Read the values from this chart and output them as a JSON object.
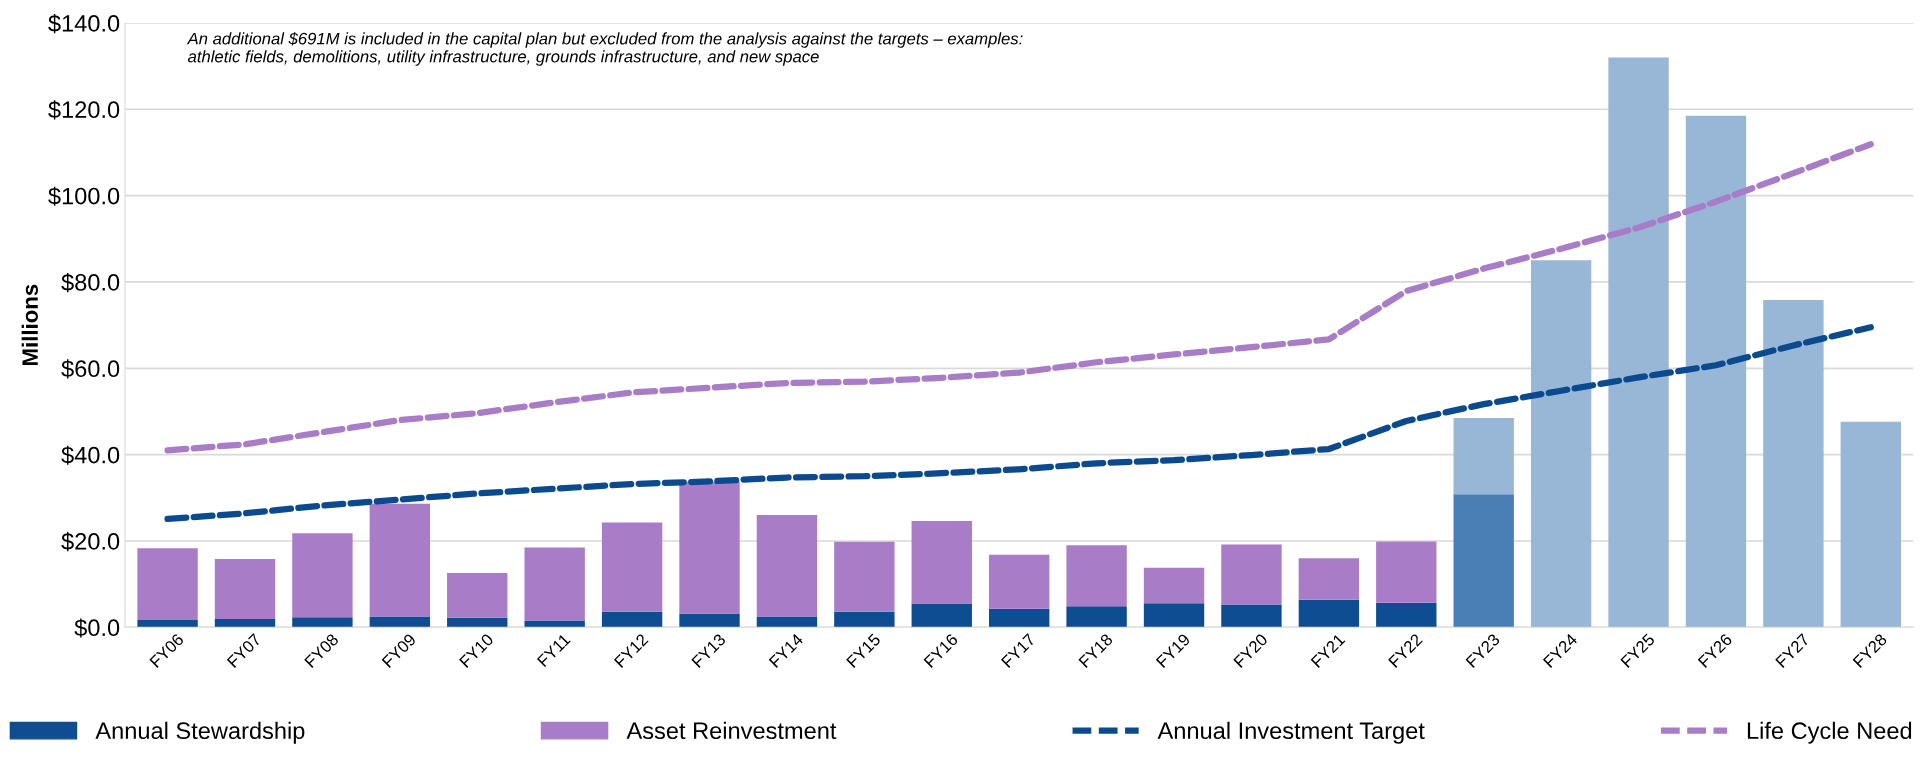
{
  "chart_data": {
    "type": "bar",
    "stacked": true,
    "ylabel": "Millions",
    "categories": [
      "FY06",
      "FY07",
      "FY08",
      "FY09",
      "FY10",
      "FY11",
      "FY12",
      "FY13",
      "FY14",
      "FY15",
      "FY16",
      "FY17",
      "FY18",
      "FY19",
      "FY20",
      "FY21",
      "FY22",
      "FY23",
      "FY24",
      "FY25",
      "FY26",
      "FY27",
      "FY28"
    ],
    "series": [
      {
        "name": "Annual Stewardship",
        "color": "#0e4d92",
        "colors": [
          "#0e4d92",
          "#0e4d92",
          "#0e4d92",
          "#0e4d92",
          "#0e4d92",
          "#0e4d92",
          "#0e4d92",
          "#0e4d92",
          "#0e4d92",
          "#0e4d92",
          "#0e4d92",
          "#0e4d92",
          "#0e4d92",
          "#0e4d92",
          "#0e4d92",
          "#0e4d92",
          "#0e4d92",
          "#4a7fb5",
          null,
          null,
          null,
          null,
          null
        ],
        "values": [
          1.7,
          1.9,
          2.3,
          2.5,
          2.2,
          1.6,
          3.6,
          3.2,
          2.5,
          3.6,
          5.5,
          4.3,
          4.9,
          5.6,
          5.3,
          6.4,
          5.7,
          30.8,
          null,
          null,
          null,
          null,
          null
        ]
      },
      {
        "name": "Asset Reinvestment",
        "color": "#a97cc8",
        "values": [
          16.6,
          13.9,
          19.5,
          26.1,
          10.4,
          16.9,
          20.7,
          30.5,
          23.5,
          16.2,
          19.1,
          12.5,
          14.1,
          8.2,
          13.9,
          9.6,
          14.2,
          null,
          null,
          null,
          null,
          null,
          null
        ]
      },
      {
        "color": "#98b7d6",
        "values": [
          null,
          null,
          null,
          null,
          null,
          null,
          null,
          null,
          null,
          null,
          null,
          null,
          null,
          null,
          null,
          null,
          null,
          17.7,
          85.0,
          132.0,
          118.5,
          75.8,
          47.6
        ]
      },
      {
        "name": "Annual Investment Target",
        "type": "line",
        "line_style": "dashed",
        "color": "#0b4a8f",
        "values": [
          25.1,
          26.4,
          28.2,
          29.6,
          31.0,
          32.1,
          33.2,
          33.8,
          34.7,
          35.0,
          35.7,
          36.6,
          38.0,
          38.7,
          39.9,
          41.3,
          47.8,
          51.7,
          54.8,
          57.9,
          60.7,
          65.3,
          69.5
        ]
      },
      {
        "name": "Life Cycle Need",
        "type": "line",
        "line_style": "dashed",
        "color": "#a97cc8",
        "values": [
          41.0,
          42.4,
          45.2,
          48.0,
          49.6,
          52.1,
          54.4,
          55.5,
          56.6,
          56.9,
          57.8,
          59.0,
          61.4,
          63.2,
          64.9,
          66.7,
          77.9,
          83.1,
          87.7,
          92.6,
          98.6,
          105.2,
          111.9
        ]
      }
    ],
    "ylim": [
      0,
      140
    ],
    "yticks": [
      {
        "value": 0,
        "label": "$0.0"
      },
      {
        "value": 20,
        "label": "$20.0"
      },
      {
        "value": 40,
        "label": "$40.0"
      },
      {
        "value": 60,
        "label": "$60.0"
      },
      {
        "value": 80,
        "label": "$80.0"
      },
      {
        "value": 100,
        "label": "$100.0"
      },
      {
        "value": 120,
        "label": "$120.0"
      },
      {
        "value": 140,
        "label": "$140.0"
      }
    ],
    "grid": "y",
    "legend": "bottom",
    "annotations": [
      "An additional $691M is included in the capital plan but excluded from the analysis against the targets – examples: athletic fields, demolitions, utility infrastructure, grounds infrastructure, and new space"
    ]
  }
}
